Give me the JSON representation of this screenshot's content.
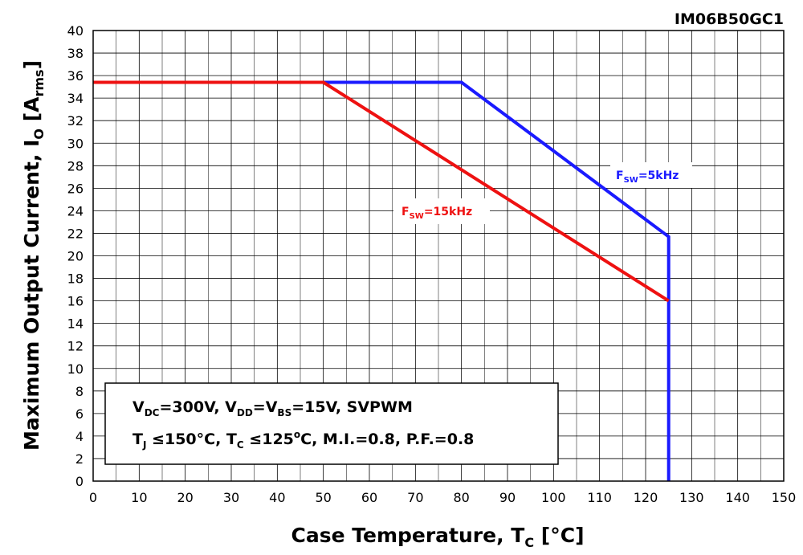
{
  "chart_data": {
    "type": "line",
    "part_number": "IM06B50GC1",
    "xlabel": {
      "main": "Case Temperature, T",
      "sub": "C",
      "unit": " [°C]"
    },
    "ylabel": {
      "main": "Maximum Output Current, I",
      "sub": "O",
      "unit_open": " [A",
      "unit_sub": "rms",
      "unit_close": "]"
    },
    "xlim": [
      0,
      150
    ],
    "ylim": [
      0,
      40
    ],
    "x_ticks": [
      "0",
      "10",
      "20",
      "30",
      "40",
      "50",
      "60",
      "70",
      "80",
      "90",
      "100",
      "110",
      "120",
      "130",
      "140",
      "150"
    ],
    "y_ticks": [
      "0",
      "2",
      "4",
      "6",
      "8",
      "10",
      "12",
      "14",
      "16",
      "18",
      "20",
      "22",
      "24",
      "26",
      "28",
      "30",
      "32",
      "34",
      "36",
      "38",
      "40"
    ],
    "grid": true,
    "series": [
      {
        "name": "Fsw=5kHz",
        "label_main": "F",
        "label_sub": "SW",
        "label_rest": "=5kHz",
        "color": "#1a1aff",
        "x": [
          0,
          80,
          125,
          125
        ],
        "y": [
          35.4,
          35.4,
          21.7,
          0
        ]
      },
      {
        "name": "Fsw=15kHz",
        "label_main": "F",
        "label_sub": "SW",
        "label_rest": "=15kHz",
        "color": "#ee1111",
        "x": [
          0,
          50,
          125
        ],
        "y": [
          35.4,
          35.4,
          16.0
        ]
      }
    ],
    "annotation": {
      "line1": {
        "a": "V",
        "a_sub": "DC",
        "b": "=300V, V",
        "b_sub": "DD",
        "c": "=V",
        "c_sub": "BS",
        "d": "=15V, SVPWM"
      },
      "line2": {
        "a": "T",
        "a_sub": "J",
        "b": " ≤150°C, T",
        "b_sub": "C",
        "c": " ≤125",
        "c_sup": "o",
        "d": "C, M.I.=0.8, P.F.=0.8"
      }
    }
  }
}
